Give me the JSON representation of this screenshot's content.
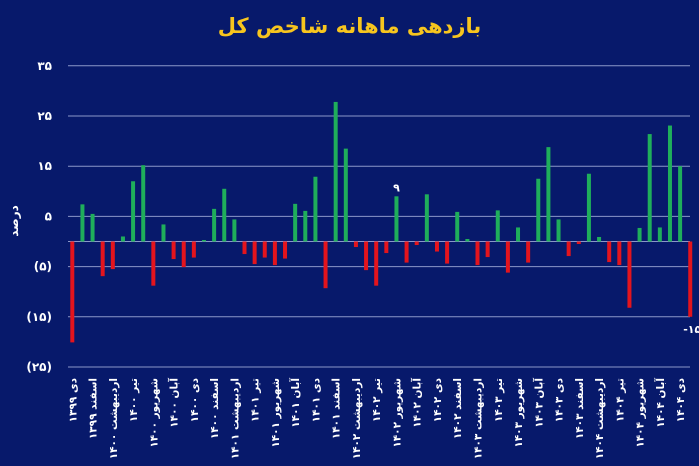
{
  "chart_data": {
    "type": "bar",
    "title": "بازدهی ماهانه شاخص کل",
    "ylabel": "درصد",
    "xlabel": "",
    "ylim": [
      -25,
      35
    ],
    "y_ticks": [
      35,
      25,
      15,
      5,
      -5,
      -15,
      -25
    ],
    "y_tick_labels": [
      "۳۵",
      "۲۵",
      "۱۵",
      "۵",
      "(۵)",
      "(۱۵)",
      "(۲۵)"
    ],
    "grid": true,
    "x_tick_labels": [
      "دی ۱۳۹۹",
      "اسفند ۱۳۹۹",
      "اردیبهشت ۱۴۰۰",
      "تیر ۱۴۰۰",
      "شهریور ۱۴۰۰",
      "آبان ۱۴۰۰",
      "دی ۱۴۰۰",
      "اسفند ۱۴۰۰",
      "اردیبهشت ۱۴۰۱",
      "تیر ۱۴۰۱",
      "شهریور ۱۴۰۱",
      "آبان ۱۴۰۱",
      "دی ۱۴۰۱",
      "اسفند ۱۴۰۱",
      "اردیبهشت ۱۴۰۲",
      "تیر ۱۴۰۲",
      "شهریور ۱۴۰۲",
      "آبان ۱۴۰۲",
      "دی ۱۴۰۲",
      "اسفند ۱۴۰۲",
      "اردیبهشت ۱۴۰۳",
      "تیر ۱۴۰۳",
      "شهریور ۱۴۰۳",
      "آبان ۱۴۰۳",
      "دی ۱۴۰۳",
      "اسفند ۱۴۰۳",
      "اردیبهشت ۱۴۰۴",
      "تیر ۱۴۰۴",
      "شهریور ۱۴۰۴",
      "آبان ۱۴۰۴",
      "دی ۱۴۰۴"
    ],
    "values": [
      -20.1,
      7.4,
      5.5,
      -6.9,
      -5.5,
      1.0,
      12.0,
      15.2,
      -8.8,
      3.4,
      -3.5,
      -5.1,
      -3.2,
      0.3,
      6.5,
      10.5,
      4.4,
      -2.5,
      -4.5,
      -3.2,
      -4.7,
      -3.4,
      7.5,
      6.1,
      12.9,
      -9.3,
      27.8,
      18.5,
      -1.1,
      -5.7,
      -8.8,
      -2.3,
      9,
      -4.2,
      -0.7,
      9.4,
      -2.0,
      -4.4,
      5.9,
      0.5,
      -4.7,
      -3.1,
      6.2,
      -6.2,
      2.8,
      -4.2,
      12.5,
      18.8,
      4.4,
      -2.9,
      -0.5,
      13.5,
      0.9,
      -4.1,
      -4.7,
      -13.2,
      2.7,
      21.4,
      2.8,
      23.1,
      15.0,
      -15
    ],
    "data_labels": [
      {
        "index": 32,
        "text": "۹"
      },
      {
        "index": 61,
        "text": "-۱۵"
      }
    ],
    "colors": {
      "positive": "#1fae5b",
      "negative": "#e3141d",
      "title": "#f7c51e",
      "background": "#07196b"
    }
  }
}
